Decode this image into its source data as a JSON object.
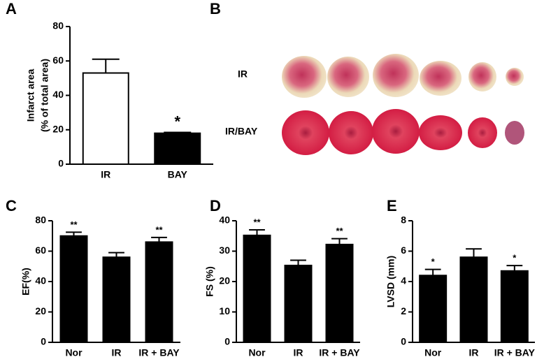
{
  "chart_data": [
    {
      "panel": "A",
      "type": "bar",
      "ylabel": [
        "Infarct area",
        "(% of total area)"
      ],
      "categories": [
        "IR",
        "BAY"
      ],
      "values": [
        53,
        18
      ],
      "errors": [
        8,
        0.5
      ],
      "colors": [
        "#ffffff",
        "#000000"
      ],
      "significance": [
        null,
        "*"
      ],
      "ylim": [
        0,
        80
      ],
      "yticks": [
        0,
        20,
        40,
        60,
        80
      ]
    },
    {
      "panel": "C",
      "type": "bar",
      "ylabel": [
        "EF(%)"
      ],
      "categories": [
        "Nor",
        "IR",
        "IR + BAY"
      ],
      "values": [
        70,
        56,
        66
      ],
      "errors": [
        2.5,
        3,
        3
      ],
      "colors": [
        "#000000",
        "#000000",
        "#000000"
      ],
      "significance": [
        "**",
        null,
        "**"
      ],
      "ylim": [
        0,
        80
      ],
      "yticks": [
        0,
        20,
        40,
        60,
        80
      ]
    },
    {
      "panel": "D",
      "type": "bar",
      "ylabel": [
        "FS (%)"
      ],
      "categories": [
        "Nor",
        "IR",
        "IR + BAY"
      ],
      "values": [
        35.2,
        25.3,
        32.2
      ],
      "errors": [
        1.8,
        1.7,
        1.9
      ],
      "colors": [
        "#000000",
        "#000000",
        "#000000"
      ],
      "significance": [
        "**",
        null,
        "**"
      ],
      "ylim": [
        0,
        40
      ],
      "yticks": [
        0,
        10,
        20,
        30,
        40
      ]
    },
    {
      "panel": "E",
      "type": "bar",
      "ylabel": [
        "LVSD (mm)"
      ],
      "categories": [
        "Nor",
        "IR",
        "IR + BAY"
      ],
      "values": [
        4.4,
        5.6,
        4.7
      ],
      "errors": [
        0.4,
        0.55,
        0.35
      ],
      "colors": [
        "#000000",
        "#000000",
        "#000000"
      ],
      "significance": [
        "*",
        null,
        "*"
      ],
      "ylim": [
        0,
        8
      ],
      "yticks": [
        0,
        2,
        4,
        6,
        8
      ]
    }
  ],
  "image_panel": {
    "panel": "B",
    "rows": [
      "IR",
      "IR/BAY"
    ]
  }
}
